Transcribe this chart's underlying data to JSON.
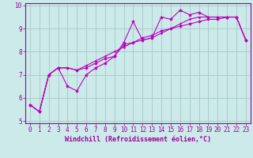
{
  "bg_color": "#cceaea",
  "grid_color": "#aacccc",
  "line_color": "#bb00bb",
  "marker_color": "#bb00bb",
  "xlabel": "Windchill (Refroidissement éolien,°C)",
  "xlabel_fontsize": 6.0,
  "tick_fontsize": 5.5,
  "ylim": [
    4.9,
    10.1
  ],
  "xlim": [
    -0.5,
    23.5
  ],
  "yticks": [
    5,
    6,
    7,
    8,
    9,
    10
  ],
  "xticks": [
    0,
    1,
    2,
    3,
    4,
    5,
    6,
    7,
    8,
    9,
    10,
    11,
    12,
    13,
    14,
    15,
    16,
    17,
    18,
    19,
    20,
    21,
    22,
    23
  ],
  "series1_x": [
    0,
    1,
    2,
    3,
    4,
    5,
    6,
    7,
    8,
    9,
    10,
    11,
    12,
    13,
    14,
    15,
    16,
    17,
    18,
    19,
    20,
    21,
    22,
    23
  ],
  "series1_y": [
    5.7,
    5.4,
    7.0,
    7.3,
    6.5,
    6.3,
    7.0,
    7.3,
    7.5,
    7.8,
    8.4,
    9.3,
    8.5,
    8.6,
    9.5,
    9.4,
    9.8,
    9.6,
    9.7,
    9.5,
    9.5,
    9.5,
    9.5,
    8.5
  ],
  "series2_x": [
    0,
    1,
    2,
    3,
    4,
    5,
    6,
    7,
    8,
    9,
    10,
    11,
    12,
    13,
    14,
    15,
    16,
    17,
    18,
    19,
    20,
    21,
    22,
    23
  ],
  "series2_y": [
    5.7,
    5.4,
    7.0,
    7.3,
    7.3,
    7.2,
    7.3,
    7.5,
    7.7,
    7.8,
    8.3,
    8.4,
    8.6,
    8.7,
    8.9,
    9.0,
    9.1,
    9.2,
    9.3,
    9.4,
    9.4,
    9.5,
    9.5,
    8.5
  ],
  "series3_x": [
    0,
    1,
    2,
    3,
    4,
    5,
    6,
    7,
    8,
    9,
    10,
    11,
    12,
    13,
    14,
    15,
    16,
    17,
    18,
    19,
    20,
    21,
    22,
    23
  ],
  "series3_y": [
    5.7,
    5.4,
    7.0,
    7.3,
    7.3,
    7.2,
    7.4,
    7.6,
    7.8,
    8.0,
    8.2,
    8.4,
    8.5,
    8.6,
    8.8,
    9.0,
    9.2,
    9.4,
    9.5,
    9.5,
    9.5,
    9.5,
    9.5,
    8.5
  ]
}
